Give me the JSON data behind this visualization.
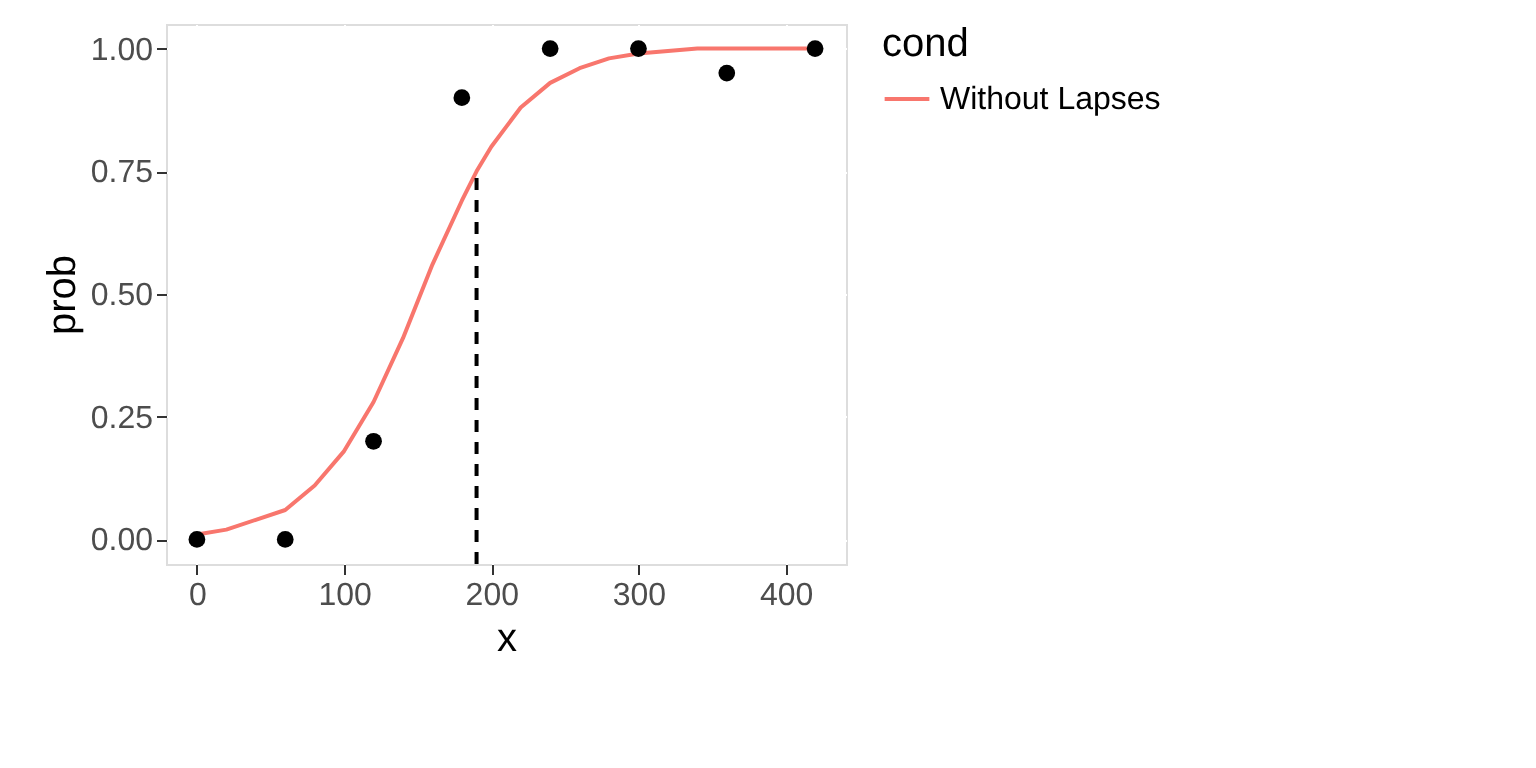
{
  "chart_data": {
    "type": "line",
    "xlabel": "x",
    "ylabel": "prob",
    "legend_title": "cond",
    "legend": "right",
    "grid": true,
    "xlim": [
      -21,
      441
    ],
    "ylim": [
      -0.05,
      1.05
    ],
    "xticks": [
      0,
      100,
      200,
      300,
      400
    ],
    "yticks": [
      {
        "value": 0,
        "label": "0.00"
      },
      {
        "value": 0.25,
        "label": "0.25"
      },
      {
        "value": 0.5,
        "label": "0.50"
      },
      {
        "value": 0.75,
        "label": "0.75"
      },
      {
        "value": 1,
        "label": "1.00"
      }
    ],
    "series": [
      {
        "name": "Without Lapses",
        "color": "#f8766d",
        "line_style": "solid",
        "x": [
          0,
          20,
          40,
          60,
          80,
          100,
          120,
          140,
          160,
          180,
          190,
          200,
          220,
          240,
          260,
          280,
          300,
          340,
          380,
          420
        ],
        "values": [
          0.01,
          0.02,
          0.04,
          0.06,
          0.11,
          0.18,
          0.28,
          0.41,
          0.56,
          0.69,
          0.75,
          0.8,
          0.88,
          0.93,
          0.96,
          0.98,
          0.99,
          1.0,
          1.0,
          1.0
        ]
      },
      {
        "type": "line",
        "color": "#000000",
        "line_style": "dashed",
        "x": [
          190,
          190
        ],
        "values": [
          -0.05,
          0.75
        ]
      },
      {
        "type": "scatter",
        "color": "#000000",
        "marker": "circle",
        "x": [
          0,
          60,
          120,
          180,
          240,
          300,
          360,
          420
        ],
        "values": [
          0,
          0,
          0.2,
          0.9,
          1,
          1,
          0.95,
          1
        ]
      }
    ]
  }
}
